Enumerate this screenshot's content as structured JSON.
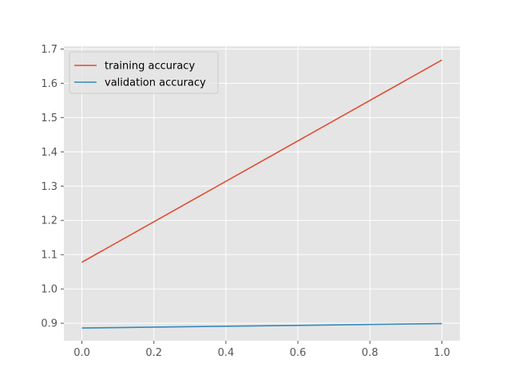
{
  "chart_data": {
    "type": "line",
    "title": "",
    "xlabel": "",
    "ylabel": "",
    "xlim": [
      -0.05,
      1.05
    ],
    "ylim": [
      0.849,
      1.708
    ],
    "grid": true,
    "legend_position": "top-left",
    "xticks": [
      "0.0",
      "0.2",
      "0.4",
      "0.6",
      "0.8",
      "1.0"
    ],
    "yticks": [
      "0.9",
      "1.0",
      "1.1",
      "1.2",
      "1.3",
      "1.4",
      "1.5",
      "1.6",
      "1.7"
    ],
    "series": [
      {
        "name": "training accuracy",
        "color": "#E24A33",
        "x": [
          0.0,
          1.0
        ],
        "y": [
          1.078,
          1.668
        ]
      },
      {
        "name": "validation accuracy",
        "color": "#348ABD",
        "x": [
          0.0,
          1.0
        ],
        "y": [
          0.886,
          0.899
        ]
      }
    ],
    "style": {
      "plot_background": "#E5E5E5",
      "grid_color": "#FFFFFF",
      "tick_color": "#555555"
    }
  }
}
